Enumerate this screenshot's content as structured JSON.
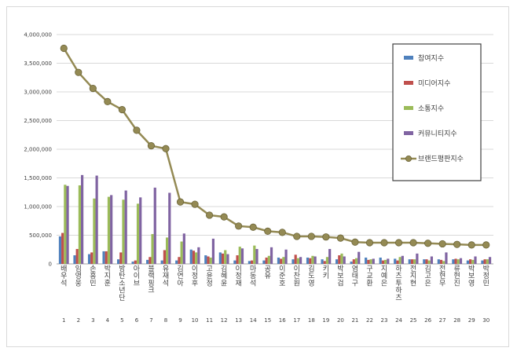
{
  "chart_data": {
    "type": "bar",
    "title": "",
    "xlabel": "",
    "ylabel": "",
    "ylim": [
      0,
      4000000
    ],
    "yticks": [
      "0",
      "500,000",
      "1,000,000",
      "1,500,000",
      "2,000,000",
      "2,500,000",
      "3,000,000",
      "3,500,000",
      "4,000,000"
    ],
    "categories": [
      "배우석",
      "임영웅",
      "손흥민",
      "박지훈",
      "방탄소년단",
      "아이브",
      "블랙핑크",
      "유재석",
      "김연아",
      "이정후",
      "고윤정",
      "김혜윤",
      "이정재",
      "마동석",
      "공유",
      "이준호",
      "이찬원",
      "김도영",
      "키키",
      "박보검",
      "염태구",
      "구교환",
      "지예은",
      "하츠투하츠",
      "전지현",
      "김고은",
      "전현무",
      "류현진",
      "박보영",
      "박정민"
    ],
    "ranks": [
      "1",
      "2",
      "3",
      "4",
      "5",
      "6",
      "7",
      "8",
      "9",
      "10",
      "11",
      "12",
      "13",
      "14",
      "15",
      "16",
      "17",
      "18",
      "19",
      "20",
      "21",
      "22",
      "23",
      "24",
      "25",
      "26",
      "27",
      "28",
      "29",
      "30"
    ],
    "series": [
      {
        "name": "참여지수",
        "color": "#4f81bd",
        "values": [
          480000,
          150000,
          170000,
          220000,
          80000,
          40000,
          70000,
          60000,
          60000,
          250000,
          150000,
          200000,
          60000,
          50000,
          60000,
          110000,
          80000,
          110000,
          80000,
          80000,
          40000,
          110000,
          110000,
          90000,
          80000,
          80000,
          80000,
          80000,
          60000,
          60000
        ]
      },
      {
        "name": "미디어지수",
        "color": "#c0504d",
        "values": [
          540000,
          260000,
          200000,
          220000,
          200000,
          60000,
          120000,
          240000,
          120000,
          230000,
          130000,
          180000,
          150000,
          60000,
          110000,
          90000,
          160000,
          100000,
          50000,
          150000,
          80000,
          70000,
          60000,
          60000,
          80000,
          80000,
          70000,
          90000,
          80000,
          80000
        ]
      },
      {
        "name": "소통지수",
        "color": "#9bbb59",
        "values": [
          1380000,
          1370000,
          1140000,
          1170000,
          1120000,
          1050000,
          520000,
          460000,
          390000,
          200000,
          110000,
          240000,
          300000,
          320000,
          140000,
          120000,
          100000,
          140000,
          120000,
          180000,
          100000,
          80000,
          70000,
          120000,
          80000,
          60000,
          50000,
          80000,
          70000,
          80000
        ]
      },
      {
        "name": "커뮤니티지수",
        "color": "#8064a2",
        "values": [
          1360000,
          1550000,
          1540000,
          1200000,
          1280000,
          1160000,
          1330000,
          1240000,
          530000,
          290000,
          440000,
          170000,
          270000,
          260000,
          290000,
          250000,
          120000,
          130000,
          260000,
          130000,
          210000,
          90000,
          90000,
          140000,
          180000,
          130000,
          200000,
          100000,
          130000,
          120000
        ]
      }
    ],
    "line": {
      "name": "브랜드평판지수",
      "color": "#948a54",
      "values": [
        3760000,
        3340000,
        3060000,
        2830000,
        2690000,
        2330000,
        2060000,
        2010000,
        1080000,
        1040000,
        850000,
        820000,
        660000,
        640000,
        570000,
        550000,
        480000,
        480000,
        470000,
        450000,
        380000,
        370000,
        370000,
        370000,
        370000,
        360000,
        350000,
        340000,
        330000,
        330000
      ]
    },
    "legend": "right"
  }
}
